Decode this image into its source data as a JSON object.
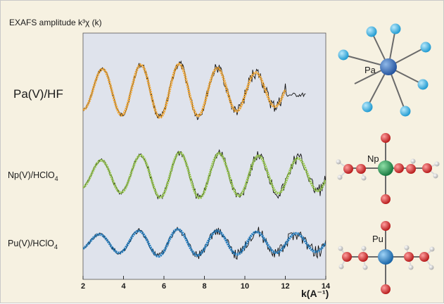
{
  "chart_data": {
    "type": "line",
    "title": "EXAFS amplitude k³χ (k)",
    "xlabel": "k(A⁻¹)",
    "ylabel": "",
    "xlim": [
      2,
      14
    ],
    "x_ticks": [
      2,
      4,
      6,
      8,
      10,
      12,
      14
    ],
    "grid": false,
    "legend": "none",
    "series": [
      {
        "name": "Pa(V)/HF",
        "color": "#f0a22a",
        "x_range": [
          2.0,
          12.0
        ],
        "amplitude": [
          0.7,
          0.9,
          1.0,
          1.0,
          0.85,
          0.7,
          0.55
        ],
        "phase": [
          0,
          0,
          0,
          0,
          0,
          0,
          0
        ],
        "period": [
          1.9,
          1.9,
          1.9,
          1.9,
          1.9,
          1.9
        ]
      },
      {
        "name": "Np(V)/HClO₄",
        "color": "#92c445",
        "x_range": [
          2.0,
          14.0
        ],
        "amplitude": [
          0.5,
          0.7,
          0.9,
          0.9,
          0.8,
          0.7,
          0.6
        ],
        "phase": [
          0.3,
          0.3,
          0.3,
          0.3,
          0.3,
          0.3,
          0.3
        ],
        "period": [
          1.95,
          1.95,
          1.95,
          1.95,
          1.95,
          1.95
        ]
      },
      {
        "name": "Pu(V)/HClO₄",
        "color": "#1c79be",
        "x_range": [
          2.0,
          14.0
        ],
        "amplitude": [
          0.4,
          0.6,
          0.8,
          0.7,
          0.65,
          0.55,
          0.5
        ],
        "phase": [
          0.6,
          0.6,
          0.6,
          0.6,
          0.6,
          0.6,
          0.6
        ],
        "period": [
          1.95,
          1.95,
          1.95,
          1.95,
          1.95,
          1.95
        ]
      }
    ]
  },
  "legend_labels": {
    "pa": "Pa(V)/HF",
    "np_main": "Np(V)/HClO",
    "np_sub": "4",
    "pu_main": "Pu(V)/HClO",
    "pu_sub": "4"
  },
  "molecules": [
    {
      "label": "Pa",
      "center_color": "#2f6fb9",
      "ligand_color": "#31b4e6"
    },
    {
      "label": "Np",
      "center_color": "#1f9a4c",
      "ligand_color": "#d42a2a",
      "h_color": "#dddddd"
    },
    {
      "label": "Pu",
      "center_color": "#1c79be",
      "ligand_color": "#d42a2a",
      "h_color": "#dddddd"
    }
  ]
}
